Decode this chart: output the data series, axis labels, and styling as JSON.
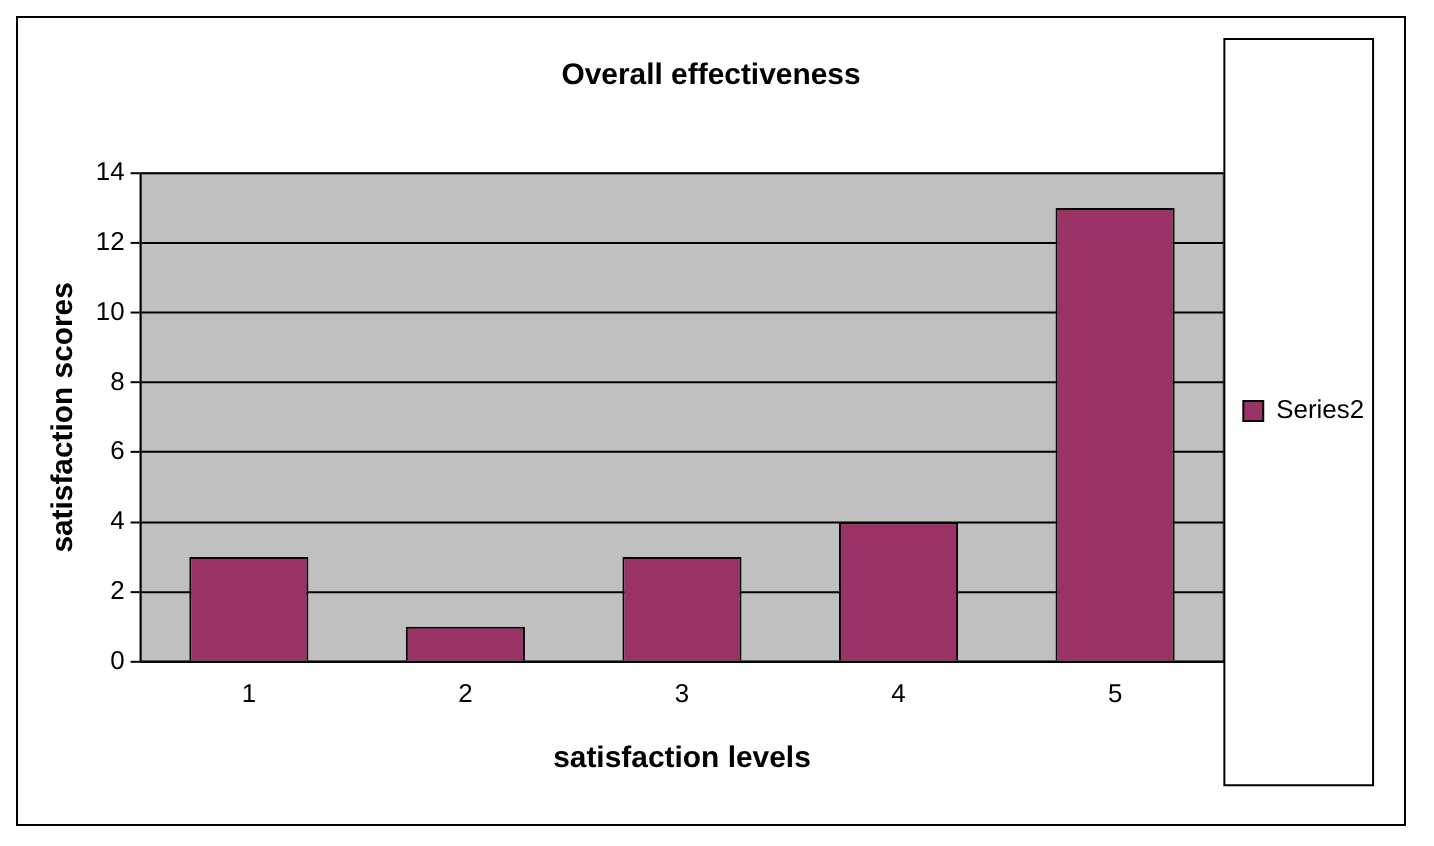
{
  "chart_data": {
    "type": "bar",
    "title": "Overall effectiveness",
    "xlabel": "satisfaction levels",
    "ylabel": "satisfaction scores",
    "categories": [
      "1",
      "2",
      "3",
      "4",
      "5"
    ],
    "series": [
      {
        "name": "Series2",
        "color": "#993366",
        "values": [
          3,
          1,
          3,
          4,
          13
        ]
      }
    ],
    "ylim": [
      0,
      14
    ],
    "yticks": [
      0,
      2,
      4,
      6,
      8,
      10,
      12,
      14
    ],
    "grid": "y",
    "legend": "right"
  }
}
